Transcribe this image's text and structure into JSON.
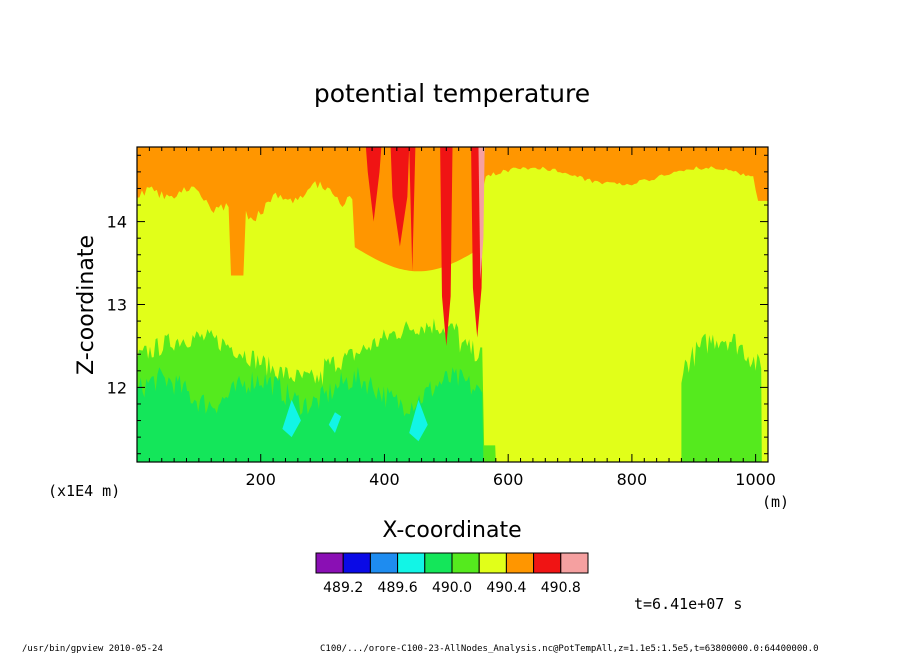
{
  "chart_data": {
    "type": "heatmap",
    "title": "potential temperature",
    "xlabel": "X-coordinate",
    "x_unit": "(m)",
    "ylabel": "Z-coordinate",
    "y_scale_note": "(x1E4 m)",
    "xlim": [
      0,
      1020
    ],
    "ylim": [
      11.1,
      14.9
    ],
    "x_ticks": [
      200,
      400,
      600,
      800,
      1000
    ],
    "y_ticks": [
      12,
      13,
      14
    ],
    "colorbar": {
      "colors": [
        "#8a0fb4",
        "#0a0ae6",
        "#1e8cf0",
        "#12f5e6",
        "#14e65a",
        "#55ea1e",
        "#e1ff19",
        "#ff9600",
        "#f01414",
        "#f5a0a0"
      ],
      "labels": [
        "489.2",
        "489.6",
        "490.0",
        "490.4",
        "490.8"
      ]
    },
    "field_summary": [
      {
        "region": "upper band",
        "z_range": [
          14.1,
          14.9
        ],
        "level": "490.4–490.6"
      },
      {
        "region": "middle band",
        "z_range": [
          12.4,
          14.1
        ],
        "level": "490.2–490.4"
      },
      {
        "region": "lower band (x < 560)",
        "z_range": [
          11.1,
          12.6
        ],
        "level": "489.8–490.2"
      },
      {
        "region": "plume near x ≈ 380–560",
        "z_range": [
          12.5,
          14.9
        ],
        "level": "490.6–491.0"
      }
    ]
  },
  "time_label": "t=6.41e+07 s",
  "footer_left": "/usr/bin/gpview   2010-05-24",
  "footer_right": "C100/.../orore-C100-23-AllNodes_Analysis.nc@PotTempAll,z=1.1e5:1.5e5,t=63800000.0:64400000.0"
}
